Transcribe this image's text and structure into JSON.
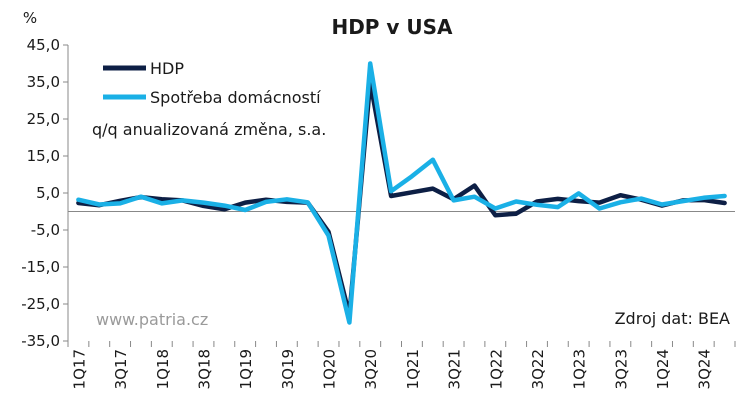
{
  "chart_data": {
    "type": "line",
    "title": "HDP v USA",
    "yunit": "%",
    "ylim": [
      -35,
      45
    ],
    "yticks": [
      45,
      35,
      25,
      15,
      5,
      -5,
      -15,
      -25,
      -35
    ],
    "ytick_labels": [
      "45,0",
      "35,0",
      "25,0",
      "15,0",
      "5,0",
      "-5,0",
      "-15,0",
      "-25,0",
      "-35,0"
    ],
    "grid": false,
    "legend": "top-left",
    "categories": [
      "1Q17",
      "2Q17",
      "3Q17",
      "4Q17",
      "1Q18",
      "2Q18",
      "3Q18",
      "4Q18",
      "1Q19",
      "2Q19",
      "3Q19",
      "4Q19",
      "1Q20",
      "2Q20",
      "3Q20",
      "4Q20",
      "1Q21",
      "2Q21",
      "3Q21",
      "4Q21",
      "1Q22",
      "2Q22",
      "3Q22",
      "4Q22",
      "1Q23",
      "2Q23",
      "3Q23",
      "4Q23",
      "1Q24",
      "2Q24",
      "3Q24",
      "4Q24"
    ],
    "x_tick_labels": [
      "1Q17",
      "3Q17",
      "1Q18",
      "3Q18",
      "1Q19",
      "3Q19",
      "1Q20",
      "3Q20",
      "1Q21",
      "3Q21",
      "1Q22",
      "3Q22",
      "1Q23",
      "3Q23",
      "1Q24",
      "3Q24"
    ],
    "series": [
      {
        "name": "HDP",
        "color": "#0d1f45",
        "values": [
          2.3,
          1.7,
          2.9,
          3.9,
          3.3,
          3.0,
          1.5,
          0.6,
          2.4,
          3.2,
          2.6,
          2.4,
          -5.5,
          -28.0,
          35.0,
          4.2,
          5.2,
          6.2,
          3.3,
          7.0,
          -1.0,
          -0.6,
          2.7,
          3.4,
          2.8,
          2.4,
          4.4,
          3.2,
          1.6,
          3.0,
          3.1,
          2.3
        ]
      },
      {
        "name": "Spotřeba domácností",
        "color": "#1ab0e6",
        "values": [
          3.2,
          1.9,
          2.2,
          4.0,
          2.2,
          3.0,
          2.4,
          1.6,
          0.4,
          2.6,
          3.3,
          2.5,
          -6.5,
          -30.0,
          40.0,
          5.5,
          9.5,
          14.0,
          3.0,
          4.0,
          0.8,
          2.7,
          1.8,
          1.2,
          4.9,
          0.8,
          2.5,
          3.5,
          1.9,
          2.8,
          3.7,
          4.2
        ]
      }
    ],
    "annotations": {
      "subtitle": "q/q anualizovaná změna, s.a.",
      "watermark": "www.patria.cz",
      "source": "Zdroj dat: BEA"
    }
  }
}
